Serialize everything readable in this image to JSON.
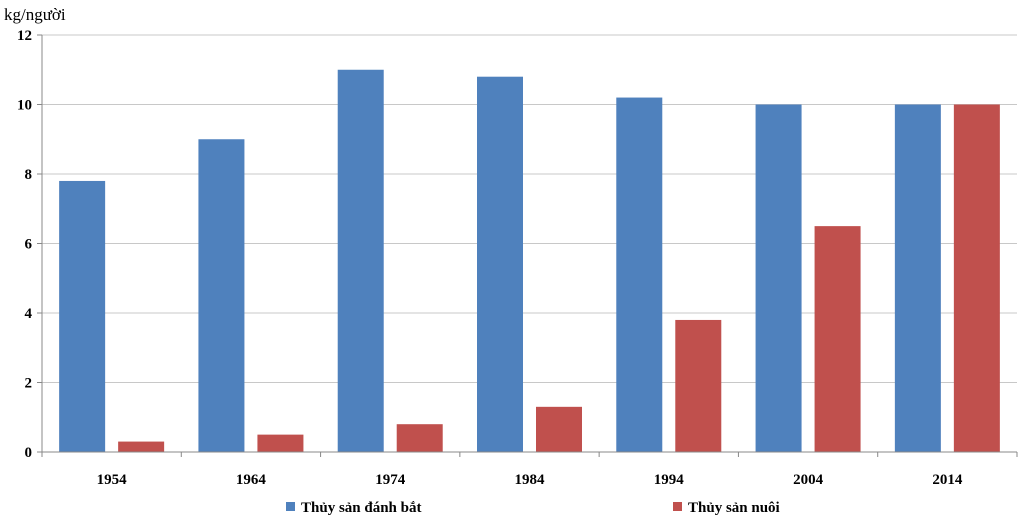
{
  "chart_data": {
    "type": "bar",
    "title": "",
    "ylabel": "kg/người",
    "xlabel": "",
    "ylim": [
      0,
      12
    ],
    "yticks": [
      0,
      2,
      4,
      6,
      8,
      10,
      12
    ],
    "grid": true,
    "legend_position": "bottom",
    "categories": [
      "1954",
      "1964",
      "1974",
      "1984",
      "1994",
      "2004",
      "2014"
    ],
    "series": [
      {
        "name": "Thủy sản đánh bắt",
        "color": "#4f81bd",
        "values": [
          7.8,
          9.0,
          11.0,
          10.8,
          10.2,
          10.0,
          10.0
        ]
      },
      {
        "name": "Thủy sản nuôi",
        "color": "#c0504d",
        "values": [
          0.3,
          0.5,
          0.8,
          1.3,
          3.8,
          6.5,
          10.0
        ]
      }
    ]
  }
}
